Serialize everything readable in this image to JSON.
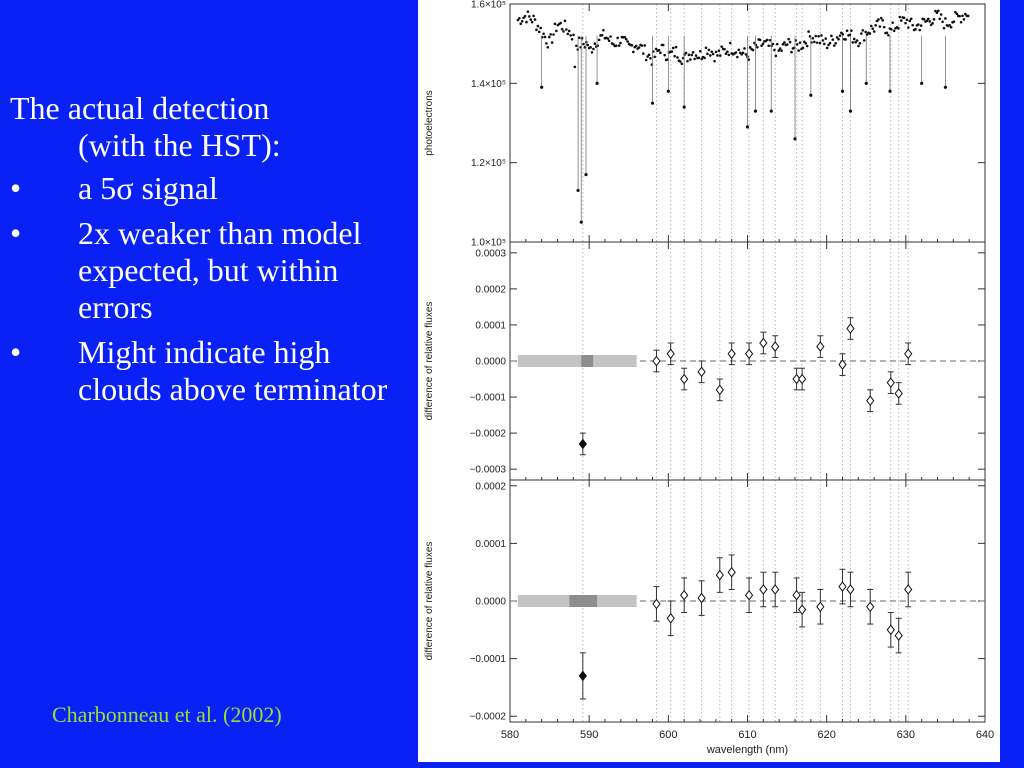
{
  "slide": {
    "intro_line1": "The actual detection",
    "intro_line2": "(with the HST):",
    "bullets": [
      "a 5σ signal",
      "2x weaker than model expected, but within errors",
      "Might indicate high clouds above terminator"
    ],
    "bullet_symbol": "•",
    "citation": "Charbonneau et al. (2002)",
    "colors": {
      "background": "#0a21f5",
      "text": "#ffffff",
      "citation": "#9adc3c"
    }
  },
  "chart_data": [
    {
      "type": "scatter",
      "xlabel": "",
      "ylabel": "photoelectrons",
      "xlim": [
        580,
        640
      ],
      "ylim": [
        100000,
        160000
      ],
      "yticks": [
        100000,
        120000,
        140000,
        160000
      ],
      "ytick_labels": [
        "1.0×10⁵",
        "1.2×10⁵",
        "1.4×10⁵",
        "1.6×10⁵"
      ],
      "series": [
        {
          "x": [
            581,
            582,
            583,
            584,
            585,
            586,
            587,
            588,
            588.6,
            589.0,
            589.6,
            590,
            591,
            592,
            593,
            594,
            595,
            596,
            597,
            598,
            599,
            600,
            601,
            602,
            603,
            604,
            605,
            606,
            607,
            608,
            609,
            610,
            611,
            612,
            613,
            614,
            615,
            616,
            617,
            618,
            619,
            620,
            621,
            622,
            623,
            624,
            625,
            626,
            627,
            628,
            629,
            630,
            631,
            632,
            633,
            634,
            635,
            636,
            637,
            638
          ],
          "y": [
            156000,
            157000,
            156000,
            153000,
            150000,
            155000,
            154000,
            152000,
            130000,
            105000,
            128000,
            148000,
            151000,
            152000,
            150000,
            151000,
            149000,
            150000,
            148000,
            146000,
            149000,
            147000,
            148000,
            146000,
            148000,
            147000,
            149000,
            147000,
            148000,
            149000,
            148000,
            147000,
            149000,
            150000,
            149000,
            148000,
            150000,
            149000,
            150000,
            152000,
            151000,
            150000,
            151000,
            153000,
            152000,
            151000,
            153000,
            154000,
            155000,
            153000,
            155000,
            156000,
            154000,
            155000,
            156000,
            157000,
            155000,
            156000,
            157000,
            158000
          ]
        }
      ],
      "dips": [
        {
          "x": 584,
          "y": 139000
        },
        {
          "x": 588.6,
          "y": 113000
        },
        {
          "x": 589.0,
          "y": 105000
        },
        {
          "x": 589.6,
          "y": 117000
        },
        {
          "x": 591,
          "y": 140000
        },
        {
          "x": 598,
          "y": 135000
        },
        {
          "x": 600,
          "y": 138000
        },
        {
          "x": 602,
          "y": 134000
        },
        {
          "x": 610,
          "y": 129000
        },
        {
          "x": 611,
          "y": 133000
        },
        {
          "x": 613,
          "y": 133000
        },
        {
          "x": 616,
          "y": 126000
        },
        {
          "x": 618,
          "y": 137000
        },
        {
          "x": 622,
          "y": 138000
        },
        {
          "x": 623,
          "y": 133000
        },
        {
          "x": 625,
          "y": 140000
        },
        {
          "x": 628,
          "y": 138000
        },
        {
          "x": 632,
          "y": 140000
        },
        {
          "x": 635,
          "y": 139000
        }
      ]
    },
    {
      "type": "scatter",
      "xlabel": "",
      "ylabel": "difference of relative fluxes",
      "xlim": [
        580,
        640
      ],
      "ylim": [
        -0.00033,
        0.00033
      ],
      "yticks": [
        -0.0003,
        -0.0002,
        -0.0001,
        0,
        0.0001,
        0.0002,
        0.0003
      ],
      "ytick_labels": [
        "−0.0003",
        "−0.0002",
        "−0.0001",
        "0.0000",
        "0.0001",
        "0.0002",
        "0.0003"
      ],
      "band": {
        "x": [
          581,
          596
        ],
        "core": [
          589,
          590.5
        ]
      },
      "series": [
        {
          "marker": "open-diamond",
          "x": [
            598.5,
            600.3,
            602.0,
            604.2,
            606.5,
            608.0,
            610.2,
            612.0,
            613.5,
            616.2,
            616.9,
            619.2,
            622.0,
            623.0,
            625.5,
            628.1,
            629.1,
            630.3
          ],
          "y": [
            0.0,
            2e-05,
            -5e-05,
            -3e-05,
            -8e-05,
            2e-05,
            2e-05,
            5e-05,
            4e-05,
            -5e-05,
            -5e-05,
            4e-05,
            -1e-05,
            9e-05,
            -0.00011,
            -6e-05,
            -9e-05,
            2e-05
          ],
          "err": [
            3e-05,
            3e-05,
            3e-05,
            3e-05,
            3e-05,
            3e-05,
            3e-05,
            3e-05,
            3e-05,
            3e-05,
            3e-05,
            3e-05,
            3e-05,
            3e-05,
            3e-05,
            3e-05,
            3e-05,
            3e-05
          ]
        },
        {
          "marker": "filled-diamond",
          "x": [
            589.2
          ],
          "y": [
            -0.00023
          ],
          "err": [
            3e-05
          ]
        }
      ]
    },
    {
      "type": "scatter",
      "xlabel": "wavelength (nm)",
      "ylabel": "difference of relative fluxes",
      "xlim": [
        580,
        640
      ],
      "ylim": [
        -0.00021,
        0.00021
      ],
      "yticks": [
        -0.0002,
        -0.0001,
        0,
        0.0001,
        0.0002
      ],
      "ytick_labels": [
        "−0.0002",
        "−0.0001",
        "0.0000",
        "0.0001",
        "0.0002"
      ],
      "xticks": [
        580,
        590,
        600,
        610,
        620,
        630,
        640
      ],
      "xtick_labels": [
        "580",
        "590",
        "600",
        "610",
        "620",
        "630",
        "640"
      ],
      "band": {
        "x": [
          581,
          596
        ],
        "core": [
          587.5,
          591
        ]
      },
      "series": [
        {
          "marker": "open-diamond",
          "x": [
            598.5,
            600.3,
            602.0,
            604.2,
            606.5,
            608.0,
            610.2,
            612.0,
            613.5,
            616.2,
            616.9,
            619.2,
            622.0,
            623.0,
            625.5,
            628.1,
            629.1,
            630.3
          ],
          "y": [
            -5e-06,
            -3e-05,
            1e-05,
            5e-06,
            4.5e-05,
            5e-05,
            1e-05,
            2e-05,
            2e-05,
            1e-05,
            -1.5e-05,
            -1e-05,
            2.5e-05,
            2e-05,
            -1e-05,
            -5e-05,
            -6e-05,
            2e-05
          ],
          "err": [
            3e-05,
            3e-05,
            3e-05,
            3e-05,
            3e-05,
            3e-05,
            3e-05,
            3e-05,
            3e-05,
            3e-05,
            3e-05,
            3e-05,
            3e-05,
            3e-05,
            3e-05,
            3e-05,
            3e-05,
            3e-05
          ]
        },
        {
          "marker": "filled-diamond",
          "x": [
            589.2
          ],
          "y": [
            -0.00013
          ],
          "err": [
            4e-05
          ]
        }
      ]
    }
  ]
}
